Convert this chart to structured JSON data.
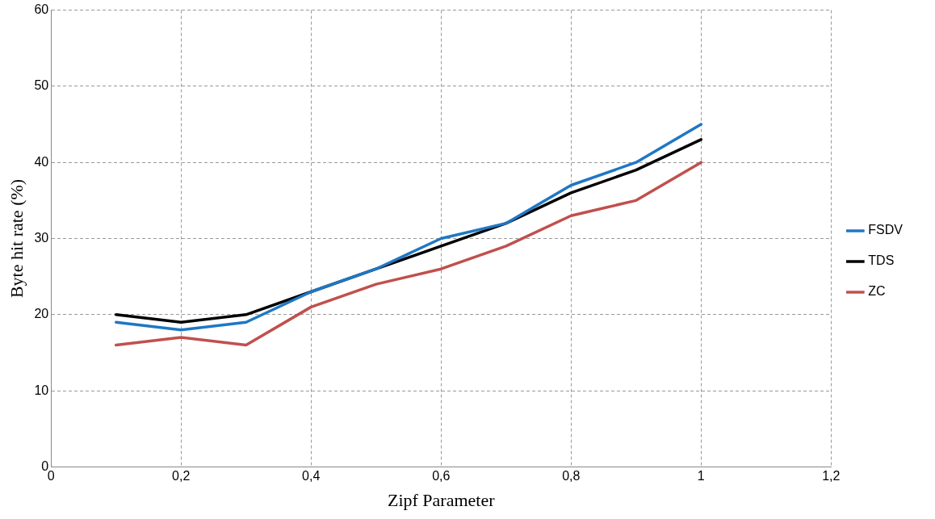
{
  "chart_data": {
    "type": "line",
    "xlabel": "Zipf Parameter",
    "ylabel": "Byte hit rate (%)",
    "x": [
      0.1,
      0.2,
      0.3,
      0.4,
      0.5,
      0.6,
      0.7,
      0.8,
      0.9,
      1
    ],
    "xlim": [
      0,
      1.2
    ],
    "xticks": [
      0,
      {
        "value": 0.2,
        "label": "0,2"
      },
      {
        "value": 0.4,
        "label": "0,4"
      },
      {
        "value": 0.6,
        "label": "0,6"
      },
      {
        "value": 0.8,
        "label": "0,8"
      },
      1,
      {
        "value": 1.2,
        "label": "1,2"
      }
    ],
    "ylim": [
      0,
      60
    ],
    "yticks": [
      0,
      10,
      20,
      30,
      40,
      50,
      60
    ],
    "grid": true,
    "legend": "right",
    "marker": "none",
    "line_style": "solid",
    "series": [
      {
        "name": "FSDV",
        "color": "#1f77c4",
        "values": [
          19,
          18,
          19,
          23,
          26,
          30,
          32,
          37,
          40,
          45
        ]
      },
      {
        "name": "TDS",
        "color": "#000000",
        "values": [
          20,
          19,
          20,
          23,
          26,
          29,
          32,
          36,
          39,
          43
        ]
      },
      {
        "name": "ZC",
        "color": "#c0504d",
        "values": [
          16,
          17,
          16,
          21,
          24,
          26,
          29,
          33,
          35,
          40
        ]
      }
    ]
  }
}
